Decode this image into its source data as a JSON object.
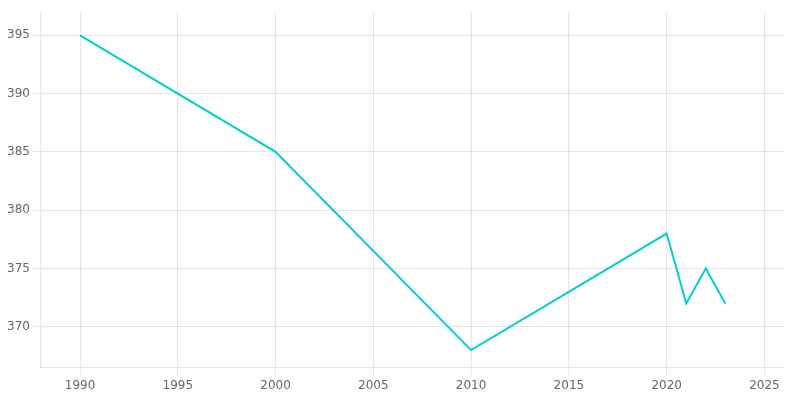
{
  "chart_data": {
    "type": "line",
    "x": [
      1990,
      2000,
      2010,
      2020,
      2021,
      2022,
      2023
    ],
    "values": [
      395,
      385,
      368,
      378,
      372,
      375,
      372
    ],
    "color": "#00CED1",
    "xlim": [
      1988,
      2026
    ],
    "ylim": [
      366.5,
      397
    ],
    "xticks": [
      1990,
      1995,
      2000,
      2005,
      2010,
      2015,
      2020,
      2025
    ],
    "yticks": [
      370,
      375,
      380,
      385,
      390,
      395
    ],
    "grid": true
  }
}
